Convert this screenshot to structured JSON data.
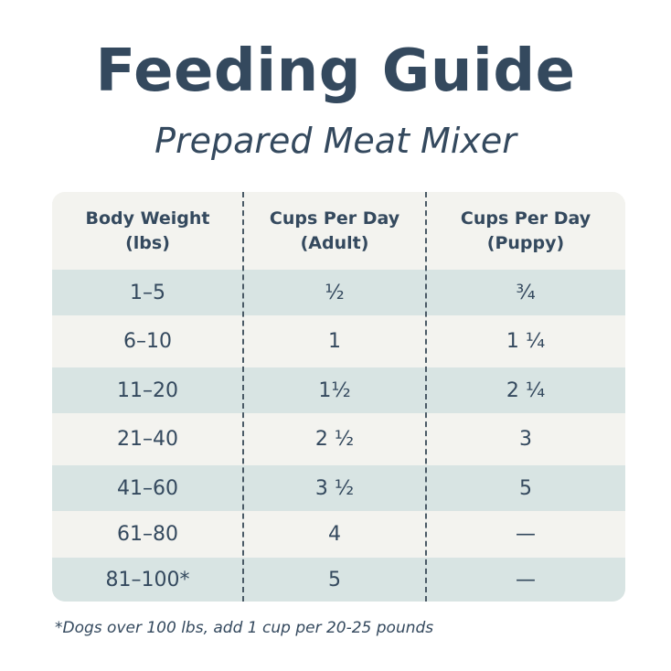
{
  "title": "Feeding Guide",
  "subtitle": "Prepared Meat Mixer",
  "table": {
    "headers": [
      "Body Weight\n(lbs)",
      "Cups Per Day\n(Adult)",
      "Cups Per Day\n(Puppy)"
    ],
    "rows": [
      [
        "1–5",
        "½",
        "¾"
      ],
      [
        "6–10",
        "1",
        "1 ¼"
      ],
      [
        "11–20",
        "1½",
        "2 ¼"
      ],
      [
        "21–40",
        "2 ½",
        "3"
      ],
      [
        "41–60",
        "3 ½",
        "5"
      ],
      [
        "61–80",
        "4",
        "—"
      ],
      [
        "81–100*",
        "5",
        "—"
      ]
    ]
  },
  "footnote": "*Dogs over 100 lbs, add 1 cup per 20-25 pounds",
  "colors": {
    "text": "#34495e",
    "row_alt": "#d8e4e3",
    "row_plain": "#f3f3ef"
  }
}
